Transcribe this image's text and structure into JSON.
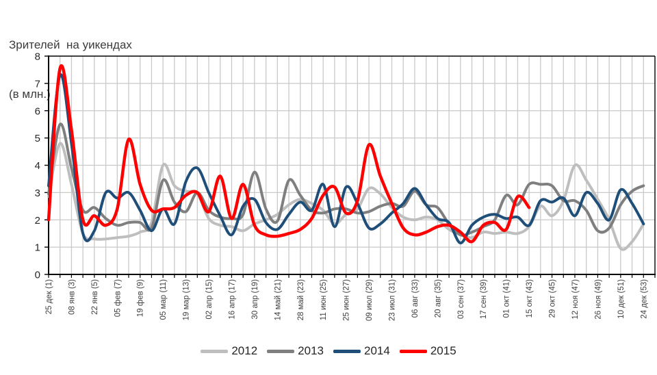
{
  "title": {
    "line1": "Зрителей  на уикендах",
    "line2": "(в млн.)"
  },
  "chart_data": {
    "type": "line",
    "title": "Зрителей на уикендах (в млн.)",
    "xlabel": "",
    "ylabel": "",
    "ylim": [
      0,
      8
    ],
    "y_ticks": [
      0,
      1,
      2,
      3,
      4,
      5,
      6,
      7,
      8
    ],
    "grid": true,
    "smooth_lines": true,
    "legend_position": "bottom",
    "weeks_total": 53,
    "x_tick_labels": [
      "25 дек (1)",
      "08 янв (3)",
      "22 янв (5)",
      "05 фев (7)",
      "19 фев (9)",
      "05 мар (11)",
      "19 мар (13)",
      "02 апр (15)",
      "16 апр (17)",
      "30 апр (19)",
      "14 май (21)",
      "28 май (23)",
      "11 июн (25)",
      "25 июн (27)",
      "09 июл (29)",
      "23 июл (31)",
      "06 авг (33)",
      "20 авг (35)",
      "03 сен (37)",
      "17 сен (39)",
      "01 окт (41)",
      "15 окт (43)",
      "29 окт (45)",
      "12 ноя (47)",
      "26 ноя (49)",
      "10 дек (51)",
      "24 дек (53)"
    ],
    "series": [
      {
        "name": "2012",
        "color": "#bebebe",
        "values": [
          2.85,
          4.8,
          3.3,
          1.5,
          1.3,
          1.3,
          1.35,
          1.4,
          1.55,
          1.9,
          4.0,
          3.25,
          3.05,
          2.95,
          2.05,
          1.8,
          1.75,
          1.6,
          1.85,
          2.0,
          2.2,
          2.55,
          2.75,
          2.6,
          2.35,
          1.85,
          2.2,
          2.4,
          3.15,
          2.95,
          2.45,
          2.1,
          2.0,
          2.1,
          2.0,
          1.65,
          1.45,
          1.35,
          1.55,
          1.5,
          1.55,
          1.5,
          1.75,
          2.5,
          2.15,
          2.7,
          4.0,
          3.45,
          2.75,
          2.0,
          0.95,
          1.2,
          1.85
        ]
      },
      {
        "name": "2013",
        "color": "#7f7f7f",
        "values": [
          2.95,
          5.5,
          3.9,
          2.35,
          2.45,
          2.05,
          1.8,
          1.9,
          1.9,
          1.7,
          3.45,
          2.65,
          2.3,
          3.0,
          2.35,
          2.1,
          2.05,
          2.2,
          3.75,
          2.4,
          1.95,
          3.45,
          2.9,
          2.35,
          2.25,
          2.4,
          2.4,
          2.25,
          2.3,
          2.5,
          2.6,
          2.5,
          3.05,
          2.55,
          2.45,
          1.85,
          1.45,
          1.55,
          1.75,
          2.0,
          2.9,
          2.55,
          3.3,
          3.3,
          3.25,
          2.7,
          2.7,
          2.35,
          1.6,
          1.7,
          2.55,
          3.05,
          3.25
        ]
      },
      {
        "name": "2014",
        "color": "#1f4e79",
        "values": [
          3.25,
          7.3,
          4.8,
          1.5,
          1.6,
          3.0,
          2.8,
          3.0,
          2.35,
          1.6,
          2.4,
          1.85,
          3.4,
          3.9,
          3.0,
          2.15,
          1.45,
          2.5,
          2.75,
          1.9,
          1.65,
          2.2,
          2.65,
          2.35,
          3.3,
          1.75,
          3.2,
          2.6,
          1.7,
          1.85,
          2.25,
          2.6,
          3.15,
          2.55,
          2.05,
          1.9,
          1.15,
          1.8,
          2.1,
          2.2,
          2.05,
          2.1,
          1.8,
          2.7,
          2.65,
          2.8,
          2.15,
          3.0,
          2.6,
          2.0,
          3.1,
          2.6,
          1.85
        ]
      },
      {
        "name": "2015",
        "color": "#ff0000",
        "values": [
          2.0,
          7.55,
          5.3,
          2.0,
          2.15,
          1.8,
          2.4,
          4.95,
          3.3,
          2.35,
          2.4,
          2.45,
          2.9,
          3.0,
          2.3,
          3.6,
          2.05,
          3.3,
          1.8,
          1.45,
          1.4,
          1.5,
          1.65,
          2.05,
          2.9,
          3.2,
          2.25,
          2.7,
          4.75,
          3.6,
          2.6,
          1.7,
          1.45,
          1.55,
          1.75,
          1.8,
          1.55,
          1.2,
          1.8,
          1.9,
          1.65,
          2.85,
          2.45
        ]
      }
    ],
    "colors": {
      "axis": "#000000",
      "gridline": "#c9c9c9",
      "tick_label": "#404040"
    }
  }
}
